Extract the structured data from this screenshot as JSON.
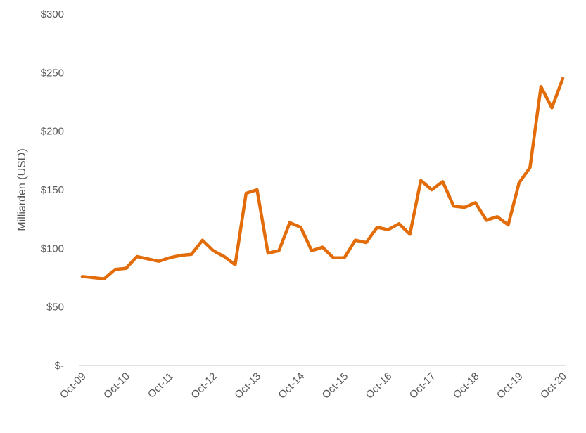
{
  "chart_data": {
    "type": "line",
    "title": "",
    "xlabel": "",
    "ylabel": "Milliarden (USD)",
    "ylim": [
      0,
      300
    ],
    "y_ticks": [
      0,
      50,
      100,
      150,
      200,
      250,
      300
    ],
    "y_tick_labels": [
      "$-",
      "$50",
      "$100",
      "$150",
      "$200",
      "$250",
      "$300"
    ],
    "x_tick_labels": [
      "Oct-09",
      "Oct-10",
      "Oct-11",
      "Oct-12",
      "Oct-13",
      "Oct-14",
      "Oct-15",
      "Oct-16",
      "Oct-17",
      "Oct-18",
      "Oct-19",
      "Oct-20"
    ],
    "grid": false,
    "legend": null,
    "line_color": "#E36C0A",
    "axis_color": "#D9D9D9",
    "text_color": "#595959",
    "series": [
      {
        "name": "Milliarden (USD)",
        "frequency": "quarterly",
        "x": [
          "Oct-09",
          "Jan-10",
          "Apr-10",
          "Jul-10",
          "Oct-10",
          "Jan-11",
          "Apr-11",
          "Jul-11",
          "Oct-11",
          "Jan-12",
          "Apr-12",
          "Jul-12",
          "Oct-12",
          "Jan-13",
          "Apr-13",
          "Jul-13",
          "Oct-13",
          "Jan-14",
          "Apr-14",
          "Jul-14",
          "Oct-14",
          "Jan-15",
          "Apr-15",
          "Jul-15",
          "Oct-15",
          "Jan-16",
          "Apr-16",
          "Jul-16",
          "Oct-16",
          "Jan-17",
          "Apr-17",
          "Jul-17",
          "Oct-17",
          "Jan-18",
          "Apr-18",
          "Jul-18",
          "Oct-18",
          "Jan-19",
          "Apr-19",
          "Jul-19",
          "Oct-19",
          "Jan-20",
          "Apr-20",
          "Jul-20",
          "Oct-20"
        ],
        "values": [
          76,
          75,
          74,
          82,
          83,
          93,
          91,
          89,
          92,
          94,
          95,
          107,
          98,
          93,
          86,
          147,
          150,
          96,
          98,
          122,
          118,
          98,
          101,
          92,
          92,
          107,
          105,
          118,
          116,
          121,
          112,
          158,
          150,
          157,
          136,
          135,
          139,
          124,
          127,
          120,
          156,
          169,
          238,
          220,
          245
        ]
      }
    ]
  }
}
